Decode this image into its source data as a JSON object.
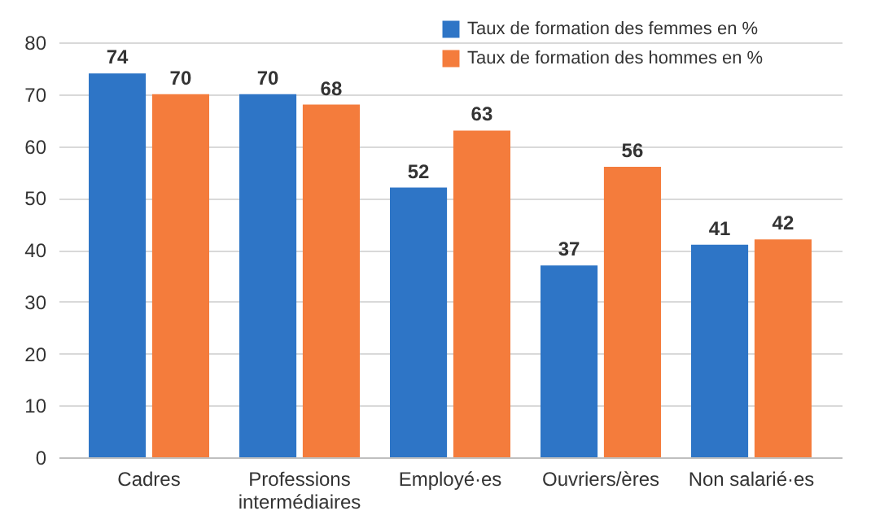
{
  "chart_data": {
    "type": "bar",
    "categories": [
      "Cadres",
      "Professions intermédiaires",
      "Employé·es",
      "Ouvriers/ères",
      "Non salarié·es"
    ],
    "series": [
      {
        "name": "Taux de formation des femmes en %",
        "color": "#2e75c6",
        "values": [
          74,
          70,
          52,
          37,
          41
        ]
      },
      {
        "name": "Taux de formation des hommes en %",
        "color": "#f47c3c",
        "values": [
          70,
          68,
          63,
          56,
          42
        ]
      }
    ],
    "ylim": [
      0,
      80
    ],
    "yticks": [
      0,
      10,
      20,
      30,
      40,
      50,
      60,
      70,
      80
    ],
    "grid": "y",
    "legend": "top right",
    "data_labels": true
  }
}
